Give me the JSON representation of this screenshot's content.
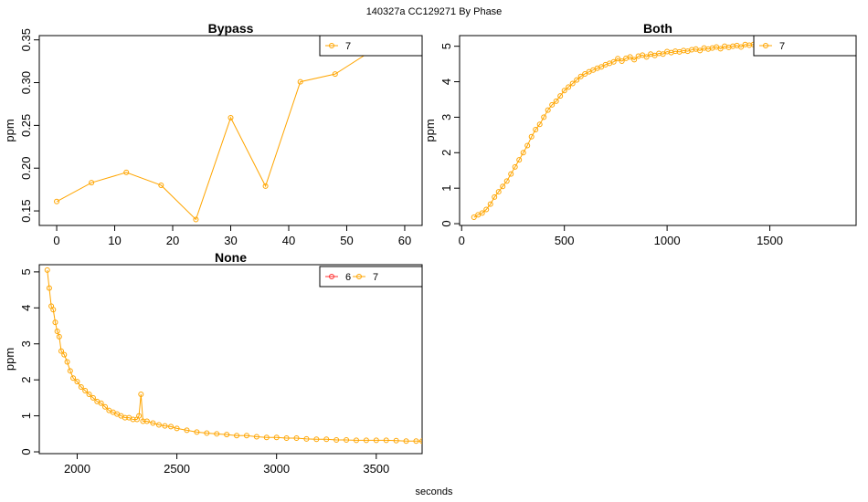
{
  "figure": {
    "title": "140327a    CC129271   By Phase",
    "xlabel": "seconds"
  },
  "colors": {
    "series_6": "#ff3030",
    "series_7": "#ffa500",
    "axis": "#000000"
  },
  "chart_data": [
    {
      "type": "line",
      "title": "Bypass",
      "ylabel": "ppm",
      "xlim": [
        -3,
        63
      ],
      "ylim": [
        0.133,
        0.355
      ],
      "xticks": [
        0,
        10,
        20,
        30,
        40,
        50,
        60
      ],
      "xtick_labels": [
        "0",
        "10",
        "20",
        "30",
        "40",
        "50",
        "60"
      ],
      "yticks": [
        0.15,
        0.2,
        0.25,
        0.3,
        0.35
      ],
      "ytick_labels": [
        "0.15",
        "0.20",
        "0.25",
        "0.30",
        "0.35"
      ],
      "legend": {
        "position": "top-right",
        "entries": [
          "7"
        ]
      },
      "series": [
        {
          "name": "7",
          "color": "#ffa500",
          "x": [
            0,
            6,
            12,
            18,
            24,
            30,
            36,
            42,
            48,
            54
          ],
          "y": [
            0.161,
            0.183,
            0.195,
            0.18,
            0.14,
            0.259,
            0.179,
            0.301,
            0.31,
            0.336
          ]
        }
      ]
    },
    {
      "type": "line",
      "title": "Both",
      "ylabel": "ppm",
      "xlim": [
        -10,
        1920
      ],
      "ylim": [
        -0.05,
        5.3
      ],
      "xticks": [
        0,
        500,
        1000,
        1500
      ],
      "xtick_labels": [
        "0",
        "500",
        "1000",
        "1500"
      ],
      "yticks": [
        0,
        1,
        2,
        3,
        4,
        5
      ],
      "ytick_labels": [
        "0",
        "1",
        "2",
        "3",
        "4",
        "5"
      ],
      "legend": {
        "position": "top-right",
        "entries": [
          "7"
        ]
      },
      "series": [
        {
          "name": "7",
          "color": "#ffa500",
          "x": [
            60,
            80,
            100,
            120,
            140,
            160,
            180,
            200,
            220,
            240,
            260,
            280,
            300,
            320,
            340,
            360,
            380,
            400,
            420,
            440,
            460,
            480,
            500,
            520,
            540,
            560,
            580,
            600,
            620,
            640,
            660,
            680,
            700,
            720,
            740,
            760,
            780,
            800,
            820,
            840,
            860,
            880,
            900,
            920,
            940,
            960,
            980,
            1000,
            1020,
            1040,
            1060,
            1080,
            1100,
            1120,
            1140,
            1160,
            1180,
            1200,
            1220,
            1240,
            1260,
            1280,
            1300,
            1320,
            1340,
            1360,
            1380,
            1400,
            1420
          ],
          "y": [
            0.18,
            0.25,
            0.3,
            0.4,
            0.55,
            0.75,
            0.9,
            1.05,
            1.2,
            1.4,
            1.6,
            1.8,
            2.0,
            2.2,
            2.45,
            2.65,
            2.8,
            3.0,
            3.2,
            3.35,
            3.45,
            3.6,
            3.75,
            3.85,
            3.95,
            4.05,
            4.15,
            4.22,
            4.28,
            4.33,
            4.38,
            4.42,
            4.48,
            4.52,
            4.56,
            4.65,
            4.58,
            4.66,
            4.7,
            4.62,
            4.72,
            4.75,
            4.7,
            4.78,
            4.74,
            4.8,
            4.78,
            4.85,
            4.82,
            4.86,
            4.84,
            4.88,
            4.86,
            4.9,
            4.92,
            4.88,
            4.95,
            4.92,
            4.95,
            4.98,
            4.93,
            5.0,
            4.97,
            5.0,
            5.02,
            4.98,
            5.05,
            5.03,
            5.05
          ]
        }
      ]
    },
    {
      "type": "line",
      "title": "None",
      "ylabel": "ppm",
      "xlim": [
        1810,
        3730
      ],
      "ylim": [
        -0.05,
        5.2
      ],
      "xticks": [
        2000,
        2500,
        3000,
        3500
      ],
      "xtick_labels": [
        "2000",
        "2500",
        "3000",
        "3500"
      ],
      "yticks": [
        0,
        1,
        2,
        3,
        4,
        5
      ],
      "ytick_labels": [
        "0",
        "1",
        "2",
        "3",
        "4",
        "5"
      ],
      "legend": {
        "position": "top-right",
        "entries": [
          "6",
          "7"
        ]
      },
      "series": [
        {
          "name": "6",
          "color": "#ff3030",
          "x": [],
          "y": []
        },
        {
          "name": "7",
          "color": "#ffa500",
          "x": [
            1850,
            1860,
            1870,
            1880,
            1890,
            1900,
            1910,
            1920,
            1935,
            1950,
            1965,
            1980,
            2000,
            2020,
            2040,
            2060,
            2080,
            2100,
            2120,
            2140,
            2160,
            2180,
            2200,
            2220,
            2240,
            2260,
            2280,
            2300,
            2310,
            2320,
            2330,
            2350,
            2380,
            2410,
            2440,
            2470,
            2500,
            2550,
            2600,
            2650,
            2700,
            2750,
            2800,
            2850,
            2900,
            2950,
            3000,
            3050,
            3100,
            3150,
            3200,
            3250,
            3300,
            3350,
            3400,
            3450,
            3500,
            3550,
            3600,
            3650,
            3700,
            3730
          ],
          "y": [
            5.05,
            4.55,
            4.05,
            3.95,
            3.6,
            3.35,
            3.2,
            2.8,
            2.7,
            2.5,
            2.25,
            2.05,
            1.95,
            1.8,
            1.7,
            1.6,
            1.5,
            1.4,
            1.35,
            1.25,
            1.15,
            1.1,
            1.05,
            1.0,
            0.95,
            0.95,
            0.9,
            0.9,
            1.0,
            1.6,
            0.85,
            0.85,
            0.8,
            0.75,
            0.72,
            0.7,
            0.65,
            0.6,
            0.55,
            0.52,
            0.5,
            0.48,
            0.45,
            0.45,
            0.42,
            0.4,
            0.4,
            0.38,
            0.38,
            0.36,
            0.35,
            0.35,
            0.33,
            0.33,
            0.32,
            0.32,
            0.32,
            0.32,
            0.31,
            0.3,
            0.3,
            0.3
          ]
        }
      ]
    }
  ]
}
